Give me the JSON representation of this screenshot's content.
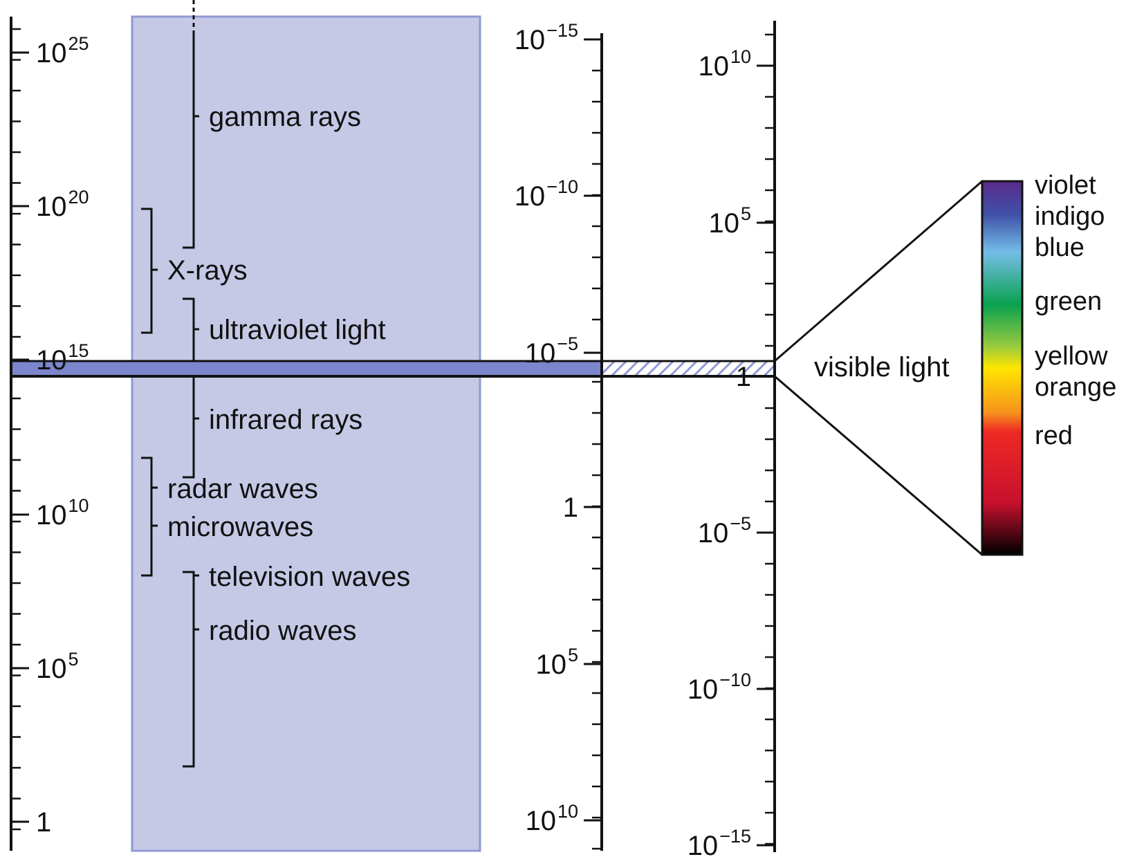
{
  "colors": {
    "panel": "#c5c9e6",
    "panel_border": "#8f99d4",
    "visible_band": "#7b86cc",
    "axis": "#111111"
  },
  "axes": {
    "frequency": {
      "labels": [
        {
          "base": "10",
          "exp": "25"
        },
        {
          "base": "10",
          "exp": "20"
        },
        {
          "base": "10",
          "exp": "15"
        },
        {
          "base": "10",
          "exp": "10"
        },
        {
          "base": "10",
          "exp": "5"
        },
        {
          "base": "1",
          "exp": ""
        }
      ]
    },
    "wavelength": {
      "labels": [
        {
          "base": "10",
          "exp": "−15"
        },
        {
          "base": "10",
          "exp": "−10"
        },
        {
          "base": "10",
          "exp": "−5"
        },
        {
          "base": "1",
          "exp": ""
        },
        {
          "base": "10",
          "exp": "5"
        },
        {
          "base": "10",
          "exp": "10"
        }
      ]
    },
    "energy": {
      "labels": [
        {
          "base": "10",
          "exp": "10"
        },
        {
          "base": "10",
          "exp": "5"
        },
        {
          "base": "1",
          "exp": ""
        },
        {
          "base": "10",
          "exp": "−5"
        },
        {
          "base": "10",
          "exp": "−10"
        },
        {
          "base": "10",
          "exp": "−15"
        }
      ]
    }
  },
  "bands": {
    "gamma": "gamma rays",
    "xrays": "X-rays",
    "uv": "ultraviolet light",
    "infrared": "infrared rays",
    "radar": "radar waves",
    "microwaves": "microwaves",
    "television": "television waves",
    "radio": "radio waves"
  },
  "visible_light_label": "visible light",
  "spectrum": {
    "colors": [
      "violet",
      "indigo",
      "blue",
      "green",
      "yellow",
      "orange",
      "red"
    ]
  }
}
